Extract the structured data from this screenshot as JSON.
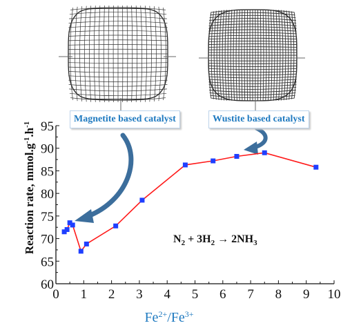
{
  "labels": {
    "magnetite": "Magnetite based catalyst",
    "wustite": "Wustite based catalyst",
    "equation_n2": "N",
    "equation_n2_sub": "2",
    "equation_h2": " + 3H",
    "equation_h2_sub": "2",
    "equation_arrow": " → 2NH",
    "equation_nh3_sub": "3"
  },
  "chart_data": {
    "type": "line",
    "xlabel": "Fe2+/Fe3+",
    "ylabel": "Reaction rate, mmol.g-1.h-1",
    "xlim": [
      0,
      10
    ],
    "ylim": [
      60,
      95
    ],
    "x_ticks": [
      0,
      1,
      2,
      3,
      4,
      5,
      6,
      7,
      8,
      9,
      10
    ],
    "y_ticks": [
      60,
      65,
      70,
      75,
      80,
      85,
      90,
      95
    ],
    "grid": false,
    "series": [
      {
        "x": [
          0.3,
          0.4,
          0.5,
          0.6,
          0.9,
          1.1,
          2.15,
          3.1,
          4.65,
          5.65,
          6.5,
          7.5,
          9.35
        ],
        "y": [
          71.5,
          72.0,
          73.5,
          73.0,
          67.2,
          68.8,
          72.8,
          78.5,
          86.3,
          87.2,
          88.2,
          89.0,
          85.8
        ]
      }
    ],
    "colors": {
      "line": "#ff1a1a",
      "marker": "#1f3fff",
      "arrow": "#3c6e9c"
    }
  }
}
